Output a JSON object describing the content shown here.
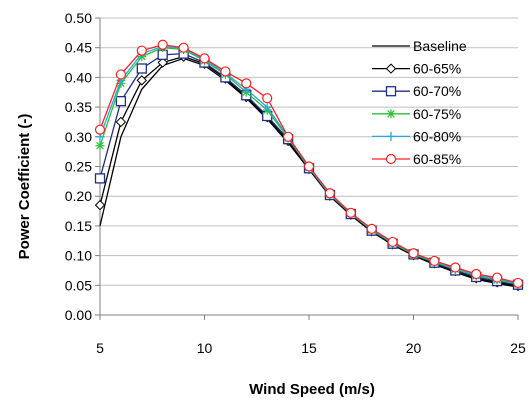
{
  "chart_data": {
    "type": "line",
    "title": "",
    "xlabel": "Wind Speed (m/s)",
    "ylabel": "Power Coefficient (-)",
    "xlim": [
      5,
      25
    ],
    "ylim": [
      0,
      0.5
    ],
    "x_ticks": [
      5,
      10,
      15,
      20,
      25
    ],
    "y_ticks": [
      "0.00",
      "0.05",
      "0.10",
      "0.15",
      "0.20",
      "0.25",
      "0.30",
      "0.35",
      "0.40",
      "0.45",
      "0.50"
    ],
    "grid": "horizontal",
    "legend_position": "right",
    "x": [
      5,
      6,
      7,
      8,
      9,
      10,
      11,
      12,
      13,
      14,
      15,
      16,
      17,
      18,
      19,
      20,
      21,
      22,
      23,
      24,
      25
    ],
    "series": [
      {
        "name": "Baseline",
        "color": "#000000",
        "marker": "none",
        "values": [
          0.15,
          0.3,
          0.38,
          0.42,
          0.432,
          0.42,
          0.395,
          0.365,
          0.33,
          0.29,
          0.245,
          0.2,
          0.168,
          0.14,
          0.118,
          0.1,
          0.085,
          0.072,
          0.06,
          0.053,
          0.047
        ]
      },
      {
        "name": "60-65%",
        "color": "#000000",
        "marker": "diamond",
        "values": [
          0.185,
          0.325,
          0.395,
          0.425,
          0.435,
          0.423,
          0.398,
          0.367,
          0.333,
          0.293,
          0.246,
          0.201,
          0.169,
          0.141,
          0.119,
          0.101,
          0.087,
          0.074,
          0.062,
          0.055,
          0.049
        ]
      },
      {
        "name": "60-70%",
        "color": "#1f2e8a",
        "marker": "square",
        "values": [
          0.23,
          0.36,
          0.415,
          0.438,
          0.44,
          0.425,
          0.4,
          0.37,
          0.335,
          0.296,
          0.247,
          0.202,
          0.17,
          0.142,
          0.12,
          0.102,
          0.088,
          0.075,
          0.064,
          0.057,
          0.051
        ]
      },
      {
        "name": "60-75%",
        "color": "#2bbf3a",
        "marker": "asterisk",
        "values": [
          0.285,
          0.39,
          0.435,
          0.45,
          0.447,
          0.428,
          0.405,
          0.375,
          0.345,
          0.298,
          0.248,
          0.203,
          0.171,
          0.143,
          0.121,
          0.102,
          0.089,
          0.077,
          0.066,
          0.059,
          0.052
        ]
      },
      {
        "name": "60-80%",
        "color": "#29a6e0",
        "marker": "plus",
        "values": [
          0.3,
          0.395,
          0.44,
          0.452,
          0.449,
          0.43,
          0.407,
          0.38,
          0.35,
          0.3,
          0.249,
          0.204,
          0.172,
          0.144,
          0.122,
          0.103,
          0.09,
          0.078,
          0.067,
          0.061,
          0.053
        ]
      },
      {
        "name": "60-85%",
        "color": "#ff2020",
        "marker": "circle",
        "values": [
          0.312,
          0.405,
          0.445,
          0.455,
          0.45,
          0.432,
          0.41,
          0.39,
          0.365,
          0.3,
          0.25,
          0.205,
          0.172,
          0.145,
          0.123,
          0.104,
          0.091,
          0.08,
          0.069,
          0.063,
          0.054
        ]
      }
    ]
  }
}
